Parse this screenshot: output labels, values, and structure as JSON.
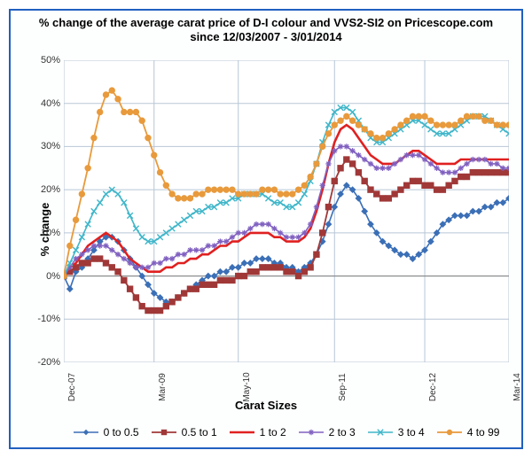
{
  "chart": {
    "type": "line",
    "title": "% change of the average carat price of  D-I colour and VVS2-SI2  on Pricescope.com since 12/03/2007 - 3/01/2014",
    "watermark": "PriceScope.com",
    "ylabel": "% change",
    "xlabel": "Carat Sizes",
    "background_color": "#ffffff",
    "plot_background": "#ffffff",
    "border_color": "#2060c0",
    "grid_color": "#b8c6d6",
    "axis_color": "#888888",
    "title_fontsize": 13,
    "label_fontsize": 13,
    "tick_fontsize": 11,
    "ylim": [
      -20,
      50
    ],
    "ytick_step": 10,
    "yticks": [
      "-20%",
      "-10%",
      "0%",
      "10%",
      "20%",
      "30%",
      "40%",
      "50%"
    ],
    "x_count": 75,
    "xtick_positions": [
      0,
      15,
      29,
      45,
      60,
      74
    ],
    "xtick_labels": [
      "Dec-07",
      "Mar-09",
      "May-10",
      "Sep-11",
      "Dec-12",
      "Mar-14"
    ],
    "series": [
      {
        "name": "0 to 0.5",
        "color": "#3b6fb6",
        "marker": "diamond",
        "line_width": 1.6,
        "values": [
          0,
          -3,
          1,
          2,
          4,
          6,
          8,
          9,
          9,
          8,
          6,
          4,
          2,
          0,
          -2,
          -4,
          -5,
          -6,
          -6,
          -5,
          -4,
          -3,
          -2,
          -1,
          0,
          0,
          1,
          1,
          2,
          2,
          3,
          3,
          4,
          4,
          4,
          3,
          3,
          2,
          2,
          1,
          2,
          3,
          5,
          8,
          12,
          16,
          19,
          21,
          20,
          18,
          15,
          12,
          10,
          8,
          7,
          6,
          5,
          5,
          4,
          5,
          6,
          8,
          10,
          12,
          13,
          14,
          14,
          14,
          15,
          15,
          16,
          16,
          17,
          17,
          18
        ]
      },
      {
        "name": "0.5  to 1",
        "color": "#a03838",
        "marker": "square",
        "line_width": 1.8,
        "values": [
          0,
          1,
          2,
          3,
          3,
          4,
          4,
          3,
          2,
          1,
          -1,
          -3,
          -5,
          -7,
          -8,
          -8,
          -8,
          -7,
          -6,
          -5,
          -4,
          -3,
          -3,
          -2,
          -2,
          -2,
          -1,
          -1,
          -1,
          0,
          0,
          1,
          1,
          2,
          2,
          2,
          2,
          1,
          1,
          0,
          1,
          2,
          5,
          10,
          16,
          22,
          25,
          27,
          26,
          24,
          22,
          20,
          19,
          18,
          18,
          19,
          20,
          21,
          22,
          22,
          21,
          21,
          20,
          20,
          21,
          22,
          23,
          23,
          24,
          24,
          24,
          24,
          24,
          24,
          24
        ]
      },
      {
        "name": "1 to 2",
        "color": "#e02020",
        "marker": "none",
        "line_width": 2.6,
        "values": [
          0,
          2,
          3,
          5,
          7,
          8,
          9,
          10,
          9,
          8,
          6,
          4,
          3,
          2,
          1,
          1,
          1,
          2,
          2,
          3,
          3,
          4,
          4,
          5,
          5,
          6,
          7,
          7,
          8,
          8,
          9,
          10,
          10,
          10,
          10,
          9,
          9,
          8,
          8,
          8,
          9,
          11,
          15,
          20,
          26,
          31,
          34,
          35,
          34,
          32,
          30,
          28,
          27,
          26,
          26,
          26,
          27,
          28,
          29,
          29,
          28,
          27,
          26,
          26,
          26,
          26,
          27,
          27,
          27,
          27,
          27,
          27,
          27,
          27,
          27
        ]
      },
      {
        "name": "2 to 3",
        "color": "#8060c0",
        "marker": "star",
        "line_width": 1.6,
        "values": [
          0,
          2,
          4,
          5,
          6,
          7,
          7,
          7,
          6,
          5,
          4,
          3,
          2,
          2,
          2,
          3,
          3,
          4,
          4,
          5,
          5,
          6,
          6,
          6,
          7,
          7,
          8,
          8,
          9,
          10,
          10,
          11,
          12,
          12,
          12,
          11,
          10,
          9,
          9,
          9,
          10,
          12,
          16,
          21,
          26,
          29,
          30,
          30,
          29,
          28,
          27,
          26,
          25,
          25,
          25,
          26,
          27,
          28,
          28,
          28,
          27,
          26,
          25,
          24,
          24,
          24,
          25,
          26,
          27,
          27,
          27,
          26,
          26,
          25,
          25
        ]
      },
      {
        "name": "3 to 4",
        "color": "#3fb6c9",
        "marker": "x",
        "line_width": 1.6,
        "values": [
          0,
          3,
          6,
          9,
          12,
          15,
          17,
          19,
          20,
          19,
          17,
          14,
          11,
          9,
          8,
          8,
          9,
          10,
          11,
          12,
          13,
          14,
          15,
          15,
          16,
          16,
          17,
          17,
          18,
          18,
          19,
          19,
          19,
          19,
          18,
          17,
          17,
          16,
          16,
          17,
          19,
          22,
          26,
          31,
          35,
          38,
          39,
          39,
          38,
          36,
          34,
          32,
          31,
          31,
          32,
          33,
          34,
          35,
          36,
          36,
          35,
          34,
          33,
          33,
          33,
          34,
          35,
          36,
          37,
          37,
          37,
          36,
          35,
          34,
          33
        ]
      },
      {
        "name": "4 to 99",
        "color": "#e89a3c",
        "marker": "circle",
        "line_width": 1.8,
        "values": [
          0,
          7,
          13,
          19,
          25,
          32,
          38,
          42,
          43,
          41,
          38,
          38,
          38,
          36,
          32,
          28,
          24,
          21,
          19,
          18,
          18,
          18,
          19,
          19,
          20,
          20,
          20,
          20,
          20,
          19,
          19,
          19,
          19,
          20,
          20,
          20,
          19,
          19,
          19,
          20,
          21,
          23,
          26,
          30,
          33,
          35,
          36,
          37,
          36,
          35,
          34,
          33,
          32,
          32,
          33,
          34,
          35,
          36,
          37,
          37,
          37,
          36,
          35,
          35,
          35,
          35,
          36,
          37,
          37,
          37,
          36,
          36,
          35,
          35,
          35
        ]
      }
    ],
    "legend": {
      "position": "bottom",
      "fontsize": 12
    }
  }
}
